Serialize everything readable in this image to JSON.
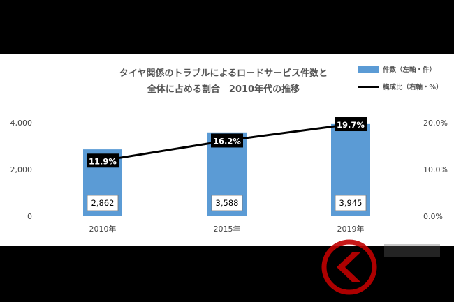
{
  "chart_data": {
    "type": "bar",
    "title_lines": [
      "タイヤ関係のトラブルによるロードサービス件数と",
      "全体に占める割合　2010年代の推移"
    ],
    "categories": [
      "2010年",
      "2015年",
      "2019年"
    ],
    "series": [
      {
        "name": "件数（左軸・件）",
        "type": "bar",
        "axis": "left",
        "values": [
          2862,
          3588,
          3945
        ],
        "labels": [
          "2,862",
          "3,588",
          "3,945"
        ],
        "color": "#5b9bd5"
      },
      {
        "name": "構成比（右軸・%）",
        "type": "line",
        "axis": "right",
        "values": [
          11.9,
          16.2,
          19.7
        ],
        "labels": [
          "11.9%",
          "16.2%",
          "19.7%"
        ],
        "color": "#000000"
      }
    ],
    "y_left": {
      "min": 0,
      "max": 4000,
      "ticks": [
        0,
        2000,
        4000
      ],
      "tick_labels": [
        "0",
        "2,000",
        "4,000"
      ]
    },
    "y_right": {
      "min": 0,
      "max": 20,
      "ticks": [
        0,
        10,
        20
      ],
      "tick_labels": [
        "0.0%",
        "10.0%",
        "20.0%"
      ]
    },
    "grid": false,
    "legend_position": "top-right"
  },
  "colors": {
    "background": "#ffffff",
    "frame": "#000000",
    "text": "#555555",
    "bar": "#5b9bd5",
    "line": "#000000",
    "watermark": "#c00000"
  },
  "watermark": {
    "icon": "brand-logo-icon"
  }
}
